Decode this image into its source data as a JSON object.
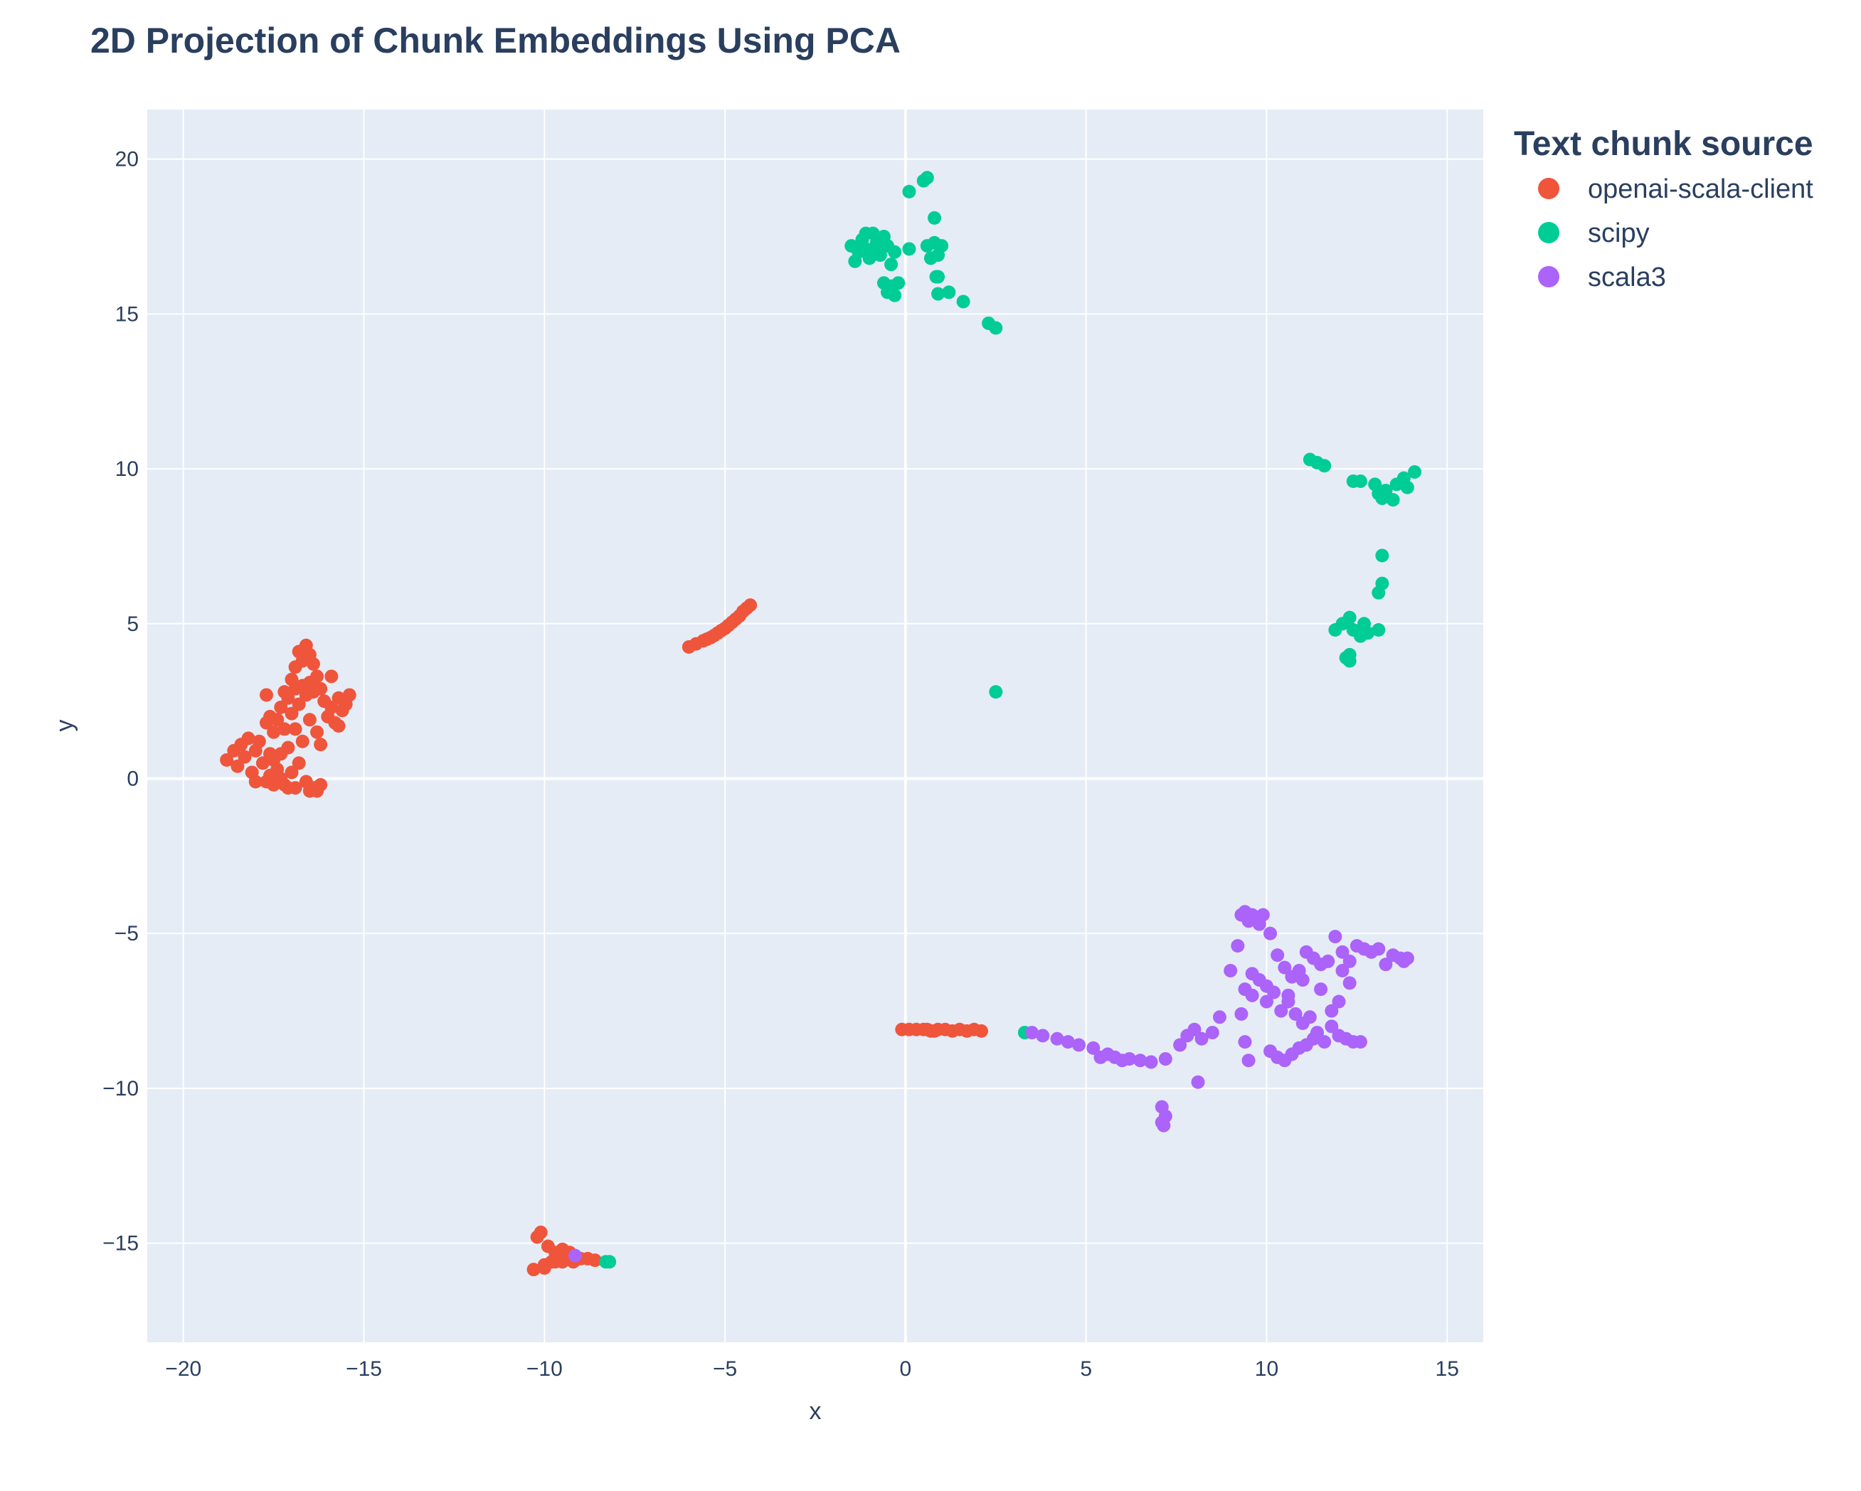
{
  "chart_data": {
    "type": "scatter",
    "title": "2D Projection of Chunk Embeddings Using PCA",
    "xlabel": "x",
    "ylabel": "y",
    "xlim": [
      -21,
      16
    ],
    "ylim": [
      -18.2,
      21.6
    ],
    "xticks": [
      -20,
      -15,
      -10,
      -5,
      0,
      5,
      10,
      15
    ],
    "yticks": [
      -15,
      -10,
      -5,
      0,
      5,
      10,
      15,
      20
    ],
    "grid": true,
    "legend": {
      "title": "Text chunk source",
      "placement": "right"
    },
    "series": [
      {
        "name": "openai-scala-client",
        "color": "#EF553B",
        "points": [
          [
            -18.8,
            0.6
          ],
          [
            -18.6,
            0.9
          ],
          [
            -18.5,
            0.4
          ],
          [
            -18.4,
            1.1
          ],
          [
            -18.3,
            0.7
          ],
          [
            -18.2,
            1.3
          ],
          [
            -18.1,
            0.2
          ],
          [
            -18.0,
            0.9
          ],
          [
            -17.9,
            1.2
          ],
          [
            -17.8,
            0.5
          ],
          [
            -17.7,
            -0.1
          ],
          [
            -17.6,
            0.1
          ],
          [
            -17.5,
            -0.2
          ],
          [
            -17.4,
            0.3
          ],
          [
            -17.3,
            0.0
          ],
          [
            -17.2,
            -0.2
          ],
          [
            -17.1,
            -0.3
          ],
          [
            -17.0,
            0.2
          ],
          [
            -16.9,
            -0.3
          ],
          [
            -16.6,
            -0.1
          ],
          [
            -16.5,
            -0.4
          ],
          [
            -16.4,
            -0.3
          ],
          [
            -16.3,
            -0.4
          ],
          [
            -16.2,
            -0.2
          ],
          [
            -17.7,
            1.8
          ],
          [
            -17.6,
            2.0
          ],
          [
            -17.5,
            1.5
          ],
          [
            -17.4,
            1.9
          ],
          [
            -17.3,
            2.3
          ],
          [
            -17.2,
            1.6
          ],
          [
            -17.1,
            2.6
          ],
          [
            -17.0,
            2.1
          ],
          [
            -16.9,
            2.9
          ],
          [
            -16.8,
            2.4
          ],
          [
            -16.7,
            3.0
          ],
          [
            -16.6,
            2.7
          ],
          [
            -16.5,
            3.1
          ],
          [
            -16.4,
            2.8
          ],
          [
            -17.0,
            3.2
          ],
          [
            -16.9,
            3.6
          ],
          [
            -16.8,
            4.1
          ],
          [
            -16.7,
            3.8
          ],
          [
            -16.6,
            4.3
          ],
          [
            -16.5,
            4.0
          ],
          [
            -16.4,
            3.7
          ],
          [
            -16.3,
            3.3
          ],
          [
            -16.2,
            2.9
          ],
          [
            -16.1,
            2.5
          ],
          [
            -16.0,
            2.0
          ],
          [
            -15.9,
            2.3
          ],
          [
            -15.8,
            1.8
          ],
          [
            -15.7,
            2.6
          ],
          [
            -15.6,
            2.2
          ],
          [
            -15.5,
            2.4
          ],
          [
            -15.4,
            2.7
          ],
          [
            -16.3,
            1.5
          ],
          [
            -16.5,
            1.9
          ],
          [
            -16.7,
            1.2
          ],
          [
            -16.9,
            1.6
          ],
          [
            -17.1,
            1.0
          ],
          [
            -17.3,
            0.8
          ],
          [
            -17.5,
            0.6
          ],
          [
            -17.7,
            2.7
          ],
          [
            -17.2,
            2.8
          ],
          [
            -16.2,
            1.1
          ],
          [
            -15.7,
            1.7
          ],
          [
            -15.9,
            3.3
          ],
          [
            -16.8,
            0.5
          ],
          [
            -17.6,
            0.8
          ],
          [
            -18.0,
            -0.1
          ]
        ]
      },
      {
        "name": "openai-scala-client",
        "color": "#EF553B",
        "points": [
          [
            -6.0,
            4.25
          ],
          [
            -5.8,
            4.35
          ],
          [
            -5.6,
            4.45
          ],
          [
            -5.4,
            4.55
          ],
          [
            -5.2,
            4.7
          ],
          [
            -5.0,
            4.85
          ],
          [
            -4.9,
            4.95
          ],
          [
            -4.8,
            5.05
          ],
          [
            -4.7,
            5.15
          ],
          [
            -4.6,
            5.25
          ],
          [
            -4.5,
            5.4
          ],
          [
            -4.4,
            5.5
          ],
          [
            -4.3,
            5.6
          ],
          [
            -5.5,
            4.5
          ],
          [
            -5.3,
            4.62
          ],
          [
            -5.1,
            4.78
          ]
        ]
      },
      {
        "name": "openai-scala-client",
        "color": "#EF553B",
        "points": [
          [
            -0.1,
            -8.1
          ],
          [
            0.1,
            -8.1
          ],
          [
            0.3,
            -8.1
          ],
          [
            0.5,
            -8.1
          ],
          [
            0.7,
            -8.15
          ],
          [
            0.9,
            -8.1
          ],
          [
            1.1,
            -8.1
          ],
          [
            1.3,
            -8.15
          ],
          [
            1.5,
            -8.1
          ],
          [
            1.7,
            -8.15
          ],
          [
            1.9,
            -8.1
          ],
          [
            2.1,
            -8.15
          ],
          [
            0.6,
            -8.1
          ],
          [
            0.8,
            -8.15
          ]
        ]
      },
      {
        "name": "openai-scala-client",
        "color": "#EF553B",
        "points": [
          [
            -10.3,
            -15.85
          ],
          [
            -10.2,
            -14.8
          ],
          [
            -10.1,
            -14.65
          ],
          [
            -10.0,
            -15.7
          ],
          [
            -9.9,
            -15.1
          ],
          [
            -9.8,
            -15.6
          ],
          [
            -9.7,
            -15.3
          ],
          [
            -9.6,
            -15.5
          ],
          [
            -9.5,
            -15.2
          ],
          [
            -9.4,
            -15.4
          ],
          [
            -9.3,
            -15.3
          ],
          [
            -9.2,
            -15.6
          ],
          [
            -9.0,
            -15.5
          ],
          [
            -8.8,
            -15.5
          ],
          [
            -8.6,
            -15.55
          ],
          [
            -10.0,
            -15.8
          ],
          [
            -9.7,
            -15.6
          ],
          [
            -9.5,
            -15.6
          ]
        ]
      },
      {
        "name": "scipy",
        "color": "#00CC96",
        "points": [
          [
            -1.5,
            17.2
          ],
          [
            -1.4,
            16.7
          ],
          [
            -1.3,
            17.0
          ],
          [
            -1.2,
            17.4
          ],
          [
            -1.1,
            17.1
          ],
          [
            -1.0,
            16.8
          ],
          [
            -0.9,
            17.6
          ],
          [
            -0.8,
            17.3
          ],
          [
            -0.7,
            16.9
          ],
          [
            -0.6,
            17.5
          ],
          [
            -0.5,
            17.2
          ],
          [
            -0.4,
            16.6
          ],
          [
            -0.3,
            17.0
          ],
          [
            -0.6,
            16.0
          ],
          [
            -0.5,
            15.7
          ],
          [
            -0.4,
            15.9
          ],
          [
            -0.3,
            15.6
          ],
          [
            -0.2,
            16.0
          ],
          [
            0.1,
            17.1
          ],
          [
            0.1,
            18.95
          ],
          [
            0.5,
            19.3
          ],
          [
            0.6,
            19.4
          ],
          [
            0.6,
            17.2
          ],
          [
            0.7,
            16.8
          ],
          [
            0.8,
            17.3
          ],
          [
            0.9,
            16.9
          ],
          [
            0.8,
            18.1
          ],
          [
            0.85,
            16.2
          ],
          [
            0.9,
            15.65
          ],
          [
            1.0,
            17.2
          ],
          [
            1.2,
            15.7
          ],
          [
            1.6,
            15.4
          ],
          [
            2.3,
            14.7
          ],
          [
            2.5,
            14.55
          ],
          [
            2.5,
            2.8
          ],
          [
            0.9,
            16.2
          ],
          [
            -1.1,
            17.6
          ],
          [
            -0.9,
            17.0
          ]
        ]
      },
      {
        "name": "scipy",
        "color": "#00CC96",
        "points": [
          [
            11.2,
            10.3
          ],
          [
            11.4,
            10.2
          ],
          [
            11.6,
            10.1
          ],
          [
            12.4,
            9.6
          ],
          [
            12.6,
            9.6
          ],
          [
            13.0,
            9.5
          ],
          [
            13.1,
            9.2
          ],
          [
            13.2,
            9.05
          ],
          [
            13.3,
            9.3
          ],
          [
            13.5,
            9.0
          ],
          [
            13.6,
            9.5
          ],
          [
            13.8,
            9.7
          ],
          [
            13.9,
            9.4
          ],
          [
            14.1,
            9.9
          ],
          [
            13.2,
            7.2
          ],
          [
            13.2,
            6.3
          ],
          [
            13.1,
            6.0
          ],
          [
            11.9,
            4.8
          ],
          [
            12.1,
            5.0
          ],
          [
            12.3,
            5.2
          ],
          [
            12.4,
            4.8
          ],
          [
            12.6,
            4.6
          ],
          [
            12.8,
            4.7
          ],
          [
            13.1,
            4.8
          ],
          [
            12.2,
            3.9
          ],
          [
            12.3,
            3.8
          ],
          [
            12.3,
            4.0
          ],
          [
            12.7,
            5.0
          ]
        ]
      },
      {
        "name": "scipy",
        "color": "#00CC96",
        "points": [
          [
            -8.3,
            -15.6
          ],
          [
            -8.2,
            -15.6
          ],
          [
            3.3,
            -8.2
          ]
        ]
      },
      {
        "name": "scala3",
        "color": "#AB63FA",
        "points": [
          [
            3.5,
            -8.2
          ],
          [
            3.8,
            -8.3
          ],
          [
            4.2,
            -8.4
          ],
          [
            4.5,
            -8.5
          ],
          [
            4.8,
            -8.6
          ],
          [
            5.2,
            -8.7
          ],
          [
            5.4,
            -9.0
          ],
          [
            5.6,
            -8.9
          ],
          [
            5.8,
            -9.0
          ],
          [
            6.0,
            -9.1
          ],
          [
            6.2,
            -9.05
          ],
          [
            6.5,
            -9.1
          ],
          [
            6.8,
            -9.15
          ],
          [
            7.2,
            -9.05
          ],
          [
            7.6,
            -8.6
          ],
          [
            7.8,
            -8.3
          ],
          [
            8.0,
            -8.1
          ],
          [
            8.2,
            -8.4
          ],
          [
            8.5,
            -8.2
          ],
          [
            8.7,
            -7.7
          ],
          [
            8.1,
            -9.8
          ],
          [
            7.1,
            -10.6
          ],
          [
            7.2,
            -10.9
          ],
          [
            7.1,
            -11.1
          ],
          [
            7.15,
            -11.2
          ],
          [
            9.0,
            -6.2
          ],
          [
            9.2,
            -5.4
          ],
          [
            9.3,
            -4.4
          ],
          [
            9.4,
            -4.3
          ],
          [
            9.5,
            -4.6
          ],
          [
            9.6,
            -4.4
          ],
          [
            9.8,
            -4.7
          ],
          [
            9.9,
            -4.4
          ],
          [
            10.1,
            -5.0
          ],
          [
            10.3,
            -5.7
          ],
          [
            10.5,
            -6.1
          ],
          [
            10.7,
            -6.4
          ],
          [
            10.9,
            -6.2
          ],
          [
            11.1,
            -5.6
          ],
          [
            11.3,
            -5.8
          ],
          [
            11.5,
            -6.0
          ],
          [
            11.7,
            -5.9
          ],
          [
            11.9,
            -5.1
          ],
          [
            12.1,
            -5.6
          ],
          [
            12.3,
            -5.9
          ],
          [
            12.5,
            -5.4
          ],
          [
            12.7,
            -5.5
          ],
          [
            12.9,
            -5.6
          ],
          [
            13.1,
            -5.5
          ],
          [
            13.3,
            -6.0
          ],
          [
            13.5,
            -5.7
          ],
          [
            13.7,
            -5.8
          ],
          [
            13.8,
            -5.9
          ],
          [
            13.9,
            -5.8
          ],
          [
            9.4,
            -6.8
          ],
          [
            9.6,
            -7.0
          ],
          [
            9.8,
            -6.5
          ],
          [
            10.0,
            -7.2
          ],
          [
            10.2,
            -6.9
          ],
          [
            10.4,
            -7.5
          ],
          [
            10.6,
            -7.2
          ],
          [
            10.8,
            -7.6
          ],
          [
            11.0,
            -7.9
          ],
          [
            11.2,
            -7.7
          ],
          [
            11.4,
            -8.2
          ],
          [
            11.6,
            -8.5
          ],
          [
            11.8,
            -8.0
          ],
          [
            12.0,
            -8.3
          ],
          [
            12.2,
            -8.4
          ],
          [
            12.4,
            -8.5
          ],
          [
            12.6,
            -8.5
          ],
          [
            10.1,
            -8.8
          ],
          [
            10.3,
            -9.0
          ],
          [
            10.5,
            -9.1
          ],
          [
            10.7,
            -8.9
          ],
          [
            10.9,
            -8.7
          ],
          [
            11.1,
            -8.6
          ],
          [
            11.3,
            -8.4
          ],
          [
            9.5,
            -9.1
          ],
          [
            9.4,
            -8.5
          ],
          [
            9.3,
            -7.6
          ],
          [
            9.6,
            -6.3
          ],
          [
            10.0,
            -6.7
          ],
          [
            10.6,
            -7.0
          ],
          [
            11.0,
            -6.5
          ],
          [
            11.5,
            -6.8
          ],
          [
            12.0,
            -7.2
          ],
          [
            12.3,
            -6.6
          ],
          [
            11.8,
            -7.5
          ],
          [
            12.1,
            -6.2
          ]
        ]
      },
      {
        "name": "scala3",
        "color": "#AB63FA",
        "points": [
          [
            -9.15,
            -15.4
          ]
        ]
      }
    ]
  }
}
